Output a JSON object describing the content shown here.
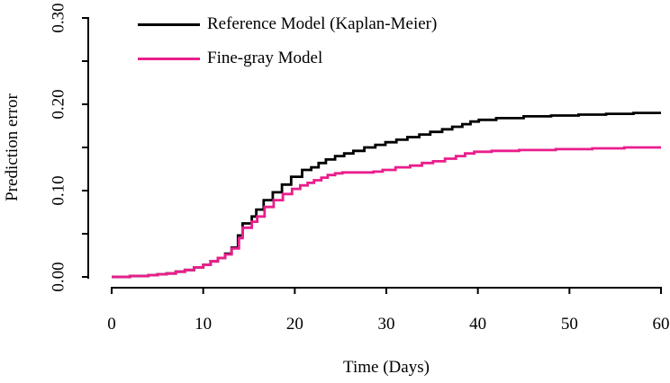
{
  "figure": {
    "background": "#ffffff"
  },
  "legend": {
    "items": [
      {
        "label": "Reference Model (Kaplan-Meier)",
        "color": "#000000"
      },
      {
        "label": "Fine-gray Model",
        "color": "#E91E8C"
      }
    ]
  },
  "chart_data": {
    "type": "line",
    "subtype": "step",
    "title": "",
    "xlabel": "Time (Days)",
    "ylabel": "Prediction error",
    "xlim": [
      0,
      60
    ],
    "ylim": [
      0,
      0.3
    ],
    "x_ticks": [
      "0",
      "10",
      "20",
      "30",
      "40",
      "50",
      "60"
    ],
    "x_tick_values": [
      0,
      10,
      20,
      30,
      40,
      50,
      60
    ],
    "y_tick_values_all": [
      0.0,
      0.05,
      0.1,
      0.15,
      0.2,
      0.25,
      0.3
    ],
    "y_tick_labeled_values": [
      0.0,
      0.1,
      0.2,
      0.3
    ],
    "y_tick_labels": [
      "0.00",
      "0.10",
      "0.20",
      "0.30"
    ],
    "grid": false,
    "legend_position": "top-left-inside",
    "axis_color": "#000000",
    "series": [
      {
        "name": "Reference Model (Kaplan-Meier)",
        "color": "#000000",
        "points": [
          [
            0,
            0.0
          ],
          [
            2,
            0.001
          ],
          [
            4,
            0.002
          ],
          [
            5,
            0.003
          ],
          [
            6,
            0.004
          ],
          [
            7,
            0.006
          ],
          [
            8,
            0.008
          ],
          [
            9,
            0.011
          ],
          [
            10,
            0.014
          ],
          [
            10.8,
            0.018
          ],
          [
            11.6,
            0.022
          ],
          [
            12.4,
            0.027
          ],
          [
            13.1,
            0.034
          ],
          [
            13.8,
            0.048
          ],
          [
            14.3,
            0.062
          ],
          [
            15.3,
            0.07
          ],
          [
            15.8,
            0.078
          ],
          [
            16.6,
            0.089
          ],
          [
            17.6,
            0.098
          ],
          [
            18.6,
            0.107
          ],
          [
            19.6,
            0.116
          ],
          [
            20.8,
            0.124
          ],
          [
            21.8,
            0.127
          ],
          [
            22.6,
            0.132
          ],
          [
            23.4,
            0.136
          ],
          [
            24.4,
            0.14
          ],
          [
            25.4,
            0.143
          ],
          [
            26.4,
            0.146
          ],
          [
            27.6,
            0.15
          ],
          [
            28.8,
            0.153
          ],
          [
            29.9,
            0.156
          ],
          [
            31.1,
            0.159
          ],
          [
            32.3,
            0.162
          ],
          [
            33.6,
            0.165
          ],
          [
            34.8,
            0.168
          ],
          [
            36.1,
            0.171
          ],
          [
            37.2,
            0.174
          ],
          [
            38.3,
            0.177
          ],
          [
            39.2,
            0.18
          ],
          [
            40.1,
            0.182
          ],
          [
            42,
            0.184
          ],
          [
            45,
            0.186
          ],
          [
            48,
            0.187
          ],
          [
            51,
            0.188
          ],
          [
            54,
            0.189
          ],
          [
            57,
            0.19
          ],
          [
            60,
            0.19
          ]
        ]
      },
      {
        "name": "Fine-gray Model",
        "color": "#E91E8C",
        "points": [
          [
            0,
            0.0
          ],
          [
            2,
            0.001
          ],
          [
            4,
            0.002
          ],
          [
            5,
            0.003
          ],
          [
            6,
            0.004
          ],
          [
            7,
            0.006
          ],
          [
            8,
            0.008
          ],
          [
            9,
            0.011
          ],
          [
            10,
            0.014
          ],
          [
            10.8,
            0.018
          ],
          [
            11.6,
            0.022
          ],
          [
            12.4,
            0.026
          ],
          [
            13.1,
            0.033
          ],
          [
            13.9,
            0.045
          ],
          [
            14.3,
            0.057
          ],
          [
            15.3,
            0.064
          ],
          [
            15.9,
            0.07
          ],
          [
            16.7,
            0.081
          ],
          [
            17.7,
            0.089
          ],
          [
            18.7,
            0.096
          ],
          [
            19.7,
            0.102
          ],
          [
            20.6,
            0.106
          ],
          [
            21.4,
            0.109
          ],
          [
            22.1,
            0.112
          ],
          [
            22.9,
            0.115
          ],
          [
            23.6,
            0.118
          ],
          [
            24.4,
            0.12
          ],
          [
            25.2,
            0.121
          ],
          [
            28.6,
            0.122
          ],
          [
            29.6,
            0.124
          ],
          [
            31,
            0.127
          ],
          [
            32.6,
            0.129
          ],
          [
            33.9,
            0.132
          ],
          [
            35.1,
            0.134
          ],
          [
            36.4,
            0.137
          ],
          [
            37.6,
            0.14
          ],
          [
            38.6,
            0.143
          ],
          [
            39.6,
            0.145
          ],
          [
            41.5,
            0.146
          ],
          [
            44.5,
            0.147
          ],
          [
            48.5,
            0.148
          ],
          [
            52.5,
            0.149
          ],
          [
            56,
            0.15
          ],
          [
            60,
            0.15
          ]
        ]
      }
    ]
  }
}
